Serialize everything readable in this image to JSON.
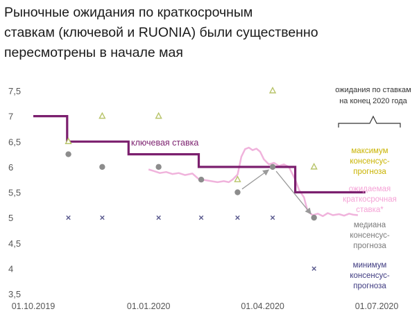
{
  "title_lines": [
    "Рыночные ожидания по краткосрочным",
    "ставкам (ключевой и RUONIA) были существенно",
    "пересмотрены в начале мая"
  ],
  "colors": {
    "key_rate": "#7b1f6e",
    "ruonia": "#f0b3dc",
    "max_marker": "#b8c46a",
    "median_marker": "#8c8c8c",
    "min_marker": "#5a5a8e",
    "max_text": "#c9b300",
    "ruonia_text": "#f5a3d6",
    "median_text": "#7a7a7a",
    "min_text": "#3e3a80",
    "arrow": "#9a9a9a",
    "axis_text": "#555555"
  },
  "chart_data": {
    "type": "line",
    "title": "Рыночные ожидания по краткосрочным ставкам (ключевой и RUONIA) были существенно пересмотрены в начале мая",
    "ylim": [
      3.5,
      7.5
    ],
    "yticks": [
      "7,5",
      "7",
      "6,5",
      "6",
      "5,5",
      "5",
      "4,5",
      "4",
      "3,5"
    ],
    "ytick_values": [
      7.5,
      7,
      6.5,
      6,
      5.5,
      5,
      4.5,
      4,
      3.5
    ],
    "xlim": [
      "2019-10-01",
      "2020-07-01"
    ],
    "xticks": [
      "01.10.2019",
      "01.01.2020",
      "01.04.2020",
      "01.07.2020"
    ],
    "xtick_values": [
      "2019-10-01",
      "2020-01-01",
      "2020-04-01",
      "2020-07-01"
    ],
    "bracket_label": [
      "ожидания по ставкам",
      "на конец 2020 года"
    ],
    "key_rate_label": "ключевая ставка",
    "key_rate_steps": [
      {
        "from": "2019-10-01",
        "value": 7.0
      },
      {
        "from": "2019-10-28",
        "value": 6.5
      },
      {
        "from": "2019-12-16",
        "value": 6.25
      },
      {
        "from": "2020-02-10",
        "value": 6.0
      },
      {
        "from": "2020-04-27",
        "value": 5.5
      },
      {
        "from": "2020-06-22",
        "value": 5.5
      }
    ],
    "ruonia": [
      {
        "x": "2020-01-01",
        "y": 5.95
      },
      {
        "x": "2020-01-05",
        "y": 5.92
      },
      {
        "x": "2020-01-10",
        "y": 5.88
      },
      {
        "x": "2020-01-15",
        "y": 5.9
      },
      {
        "x": "2020-01-20",
        "y": 5.86
      },
      {
        "x": "2020-01-25",
        "y": 5.88
      },
      {
        "x": "2020-01-30",
        "y": 5.84
      },
      {
        "x": "2020-02-05",
        "y": 5.87
      },
      {
        "x": "2020-02-10",
        "y": 5.76
      },
      {
        "x": "2020-02-15",
        "y": 5.74
      },
      {
        "x": "2020-02-20",
        "y": 5.72
      },
      {
        "x": "2020-02-25",
        "y": 5.7
      },
      {
        "x": "2020-03-01",
        "y": 5.72
      },
      {
        "x": "2020-03-05",
        "y": 5.7
      },
      {
        "x": "2020-03-08",
        "y": 5.75
      },
      {
        "x": "2020-03-12",
        "y": 5.85
      },
      {
        "x": "2020-03-15",
        "y": 6.2
      },
      {
        "x": "2020-03-18",
        "y": 6.35
      },
      {
        "x": "2020-03-21",
        "y": 6.38
      },
      {
        "x": "2020-03-24",
        "y": 6.33
      },
      {
        "x": "2020-03-27",
        "y": 6.36
      },
      {
        "x": "2020-03-30",
        "y": 6.3
      },
      {
        "x": "2020-04-02",
        "y": 6.15
      },
      {
        "x": "2020-04-06",
        "y": 6.05
      },
      {
        "x": "2020-04-10",
        "y": 6.08
      },
      {
        "x": "2020-04-14",
        "y": 6.02
      },
      {
        "x": "2020-04-18",
        "y": 6.05
      },
      {
        "x": "2020-04-22",
        "y": 6.0
      },
      {
        "x": "2020-04-27",
        "y": 5.75
      },
      {
        "x": "2020-04-30",
        "y": 5.55
      },
      {
        "x": "2020-05-04",
        "y": 5.4
      },
      {
        "x": "2020-05-07",
        "y": 5.12
      },
      {
        "x": "2020-05-11",
        "y": 5.05
      },
      {
        "x": "2020-05-15",
        "y": 5.08
      },
      {
        "x": "2020-05-19",
        "y": 5.03
      },
      {
        "x": "2020-05-23",
        "y": 5.09
      },
      {
        "x": "2020-05-27",
        "y": 5.05
      },
      {
        "x": "2020-06-01",
        "y": 5.07
      },
      {
        "x": "2020-06-05",
        "y": 5.04
      },
      {
        "x": "2020-06-09",
        "y": 5.08
      },
      {
        "x": "2020-06-12",
        "y": 5.06
      },
      {
        "x": "2020-06-16",
        "y": 5.05
      }
    ],
    "forecasts": [
      {
        "x": "2019-10-29",
        "max": 6.5,
        "median": 6.25,
        "min": 5.0
      },
      {
        "x": "2019-11-25",
        "max": 7.0,
        "median": 6.0,
        "min": 5.0
      },
      {
        "x": "2020-01-09",
        "max": 7.0,
        "median": 6.0,
        "min": 5.0
      },
      {
        "x": "2020-02-12",
        "max": null,
        "median": 5.75,
        "min": 5.0
      },
      {
        "x": "2020-03-12",
        "max": 5.75,
        "median": 5.5,
        "min": 5.0
      },
      {
        "x": "2020-04-09",
        "max": 7.5,
        "median": 6.0,
        "min": 5.0
      },
      {
        "x": "2020-05-12",
        "max": 6.0,
        "median": 5.0,
        "min": 4.0
      }
    ],
    "arrows": [
      {
        "from": {
          "x": "2020-03-12",
          "y": 5.5
        },
        "to": {
          "x": "2020-04-09",
          "y": 6.0
        }
      },
      {
        "from": {
          "x": "2020-04-09",
          "y": 6.0
        },
        "to": {
          "x": "2020-05-12",
          "y": 5.0
        }
      }
    ],
    "legend": [
      {
        "key": "max",
        "lines": [
          "максимум",
          "консенсус-",
          "прогноза"
        ]
      },
      {
        "key": "ruonia",
        "lines": [
          "ожидаемая",
          "краткосрочная",
          "ставка*"
        ]
      },
      {
        "key": "median",
        "lines": [
          "медиана",
          "консенсус-",
          "прогноза"
        ]
      },
      {
        "key": "min",
        "lines": [
          "минимум",
          "консенсус-",
          "прогноза"
        ]
      }
    ]
  }
}
